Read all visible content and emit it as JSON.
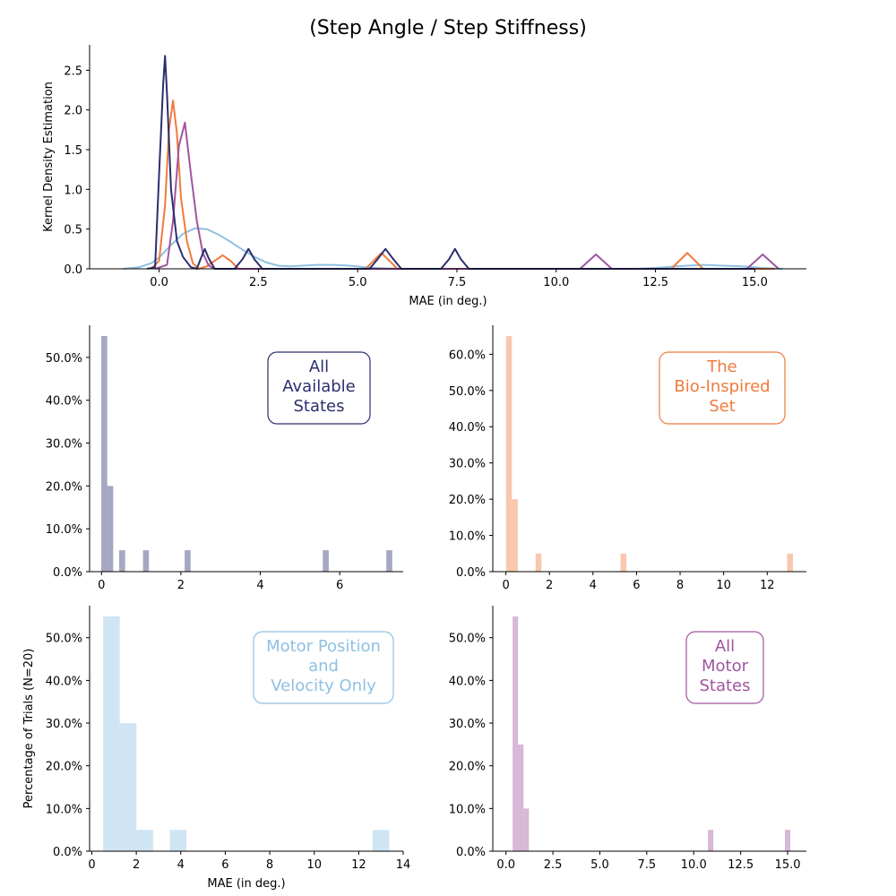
{
  "title": "(Step Angle / Step Stiffness)",
  "colors": {
    "all_states": "#2b2f6e",
    "bio_inspired": "#f07a3c",
    "motor_pos_vel": "#8fc0e3",
    "all_motor": "#a0559e",
    "axis": "#000000"
  },
  "chart_data": [
    {
      "id": "kde",
      "type": "line",
      "xlabel": "MAE (in deg.)",
      "ylabel": "Kernel Density Estimation",
      "xlim": [
        -1.75,
        16.3
      ],
      "ylim": [
        0,
        2.82
      ],
      "xticks": [
        0.0,
        2.5,
        5.0,
        7.5,
        10.0,
        12.5,
        15.0
      ],
      "xtick_labels": [
        "0.0",
        "2.5",
        "5.0",
        "7.5",
        "10.0",
        "12.5",
        "15.0"
      ],
      "yticks": [
        0.0,
        0.5,
        1.0,
        1.5,
        2.0,
        2.5
      ],
      "ytick_labels": [
        "0.0",
        "0.5",
        "1.0",
        "1.5",
        "2.0",
        "2.5"
      ],
      "grid": false,
      "series": [
        {
          "color_key": "motor_pos_vel",
          "x": [
            -0.9,
            -0.5,
            -0.2,
            0.0,
            0.3,
            0.6,
            0.9,
            1.2,
            1.5,
            1.8,
            2.1,
            2.4,
            2.7,
            3.0,
            3.3,
            3.6,
            4.0,
            4.4,
            4.8,
            5.2,
            5.5,
            6.0,
            7.0,
            8.0,
            9.0,
            10.0,
            11.0,
            12.0,
            12.5,
            13.0,
            13.3,
            13.7,
            14.2,
            14.7,
            15.2,
            15.7
          ],
          "y": [
            0.0,
            0.02,
            0.07,
            0.14,
            0.3,
            0.44,
            0.51,
            0.5,
            0.43,
            0.34,
            0.24,
            0.15,
            0.08,
            0.04,
            0.03,
            0.04,
            0.05,
            0.05,
            0.04,
            0.02,
            0.01,
            0.0,
            0.0,
            0.0,
            0.0,
            0.0,
            0.0,
            0.0,
            0.01,
            0.03,
            0.04,
            0.05,
            0.04,
            0.03,
            0.01,
            0.0
          ]
        },
        {
          "color_key": "bio_inspired",
          "x": [
            -0.2,
            0.0,
            0.15,
            0.25,
            0.35,
            0.45,
            0.55,
            0.7,
            0.85,
            1.0,
            1.2,
            1.4,
            1.6,
            1.8,
            2.0,
            5.2,
            5.4,
            5.6,
            5.8,
            6.0,
            12.9,
            13.1,
            13.3,
            13.5,
            13.7,
            15.5
          ],
          "y": [
            0.0,
            0.1,
            0.8,
            1.75,
            2.12,
            1.7,
            0.9,
            0.35,
            0.07,
            0.0,
            0.03,
            0.1,
            0.17,
            0.1,
            0.0,
            0.0,
            0.1,
            0.2,
            0.1,
            0.0,
            0.0,
            0.1,
            0.2,
            0.1,
            0.0,
            0.0
          ]
        },
        {
          "color_key": "all_motor",
          "x": [
            -0.1,
            0.2,
            0.35,
            0.5,
            0.65,
            0.8,
            0.95,
            1.1,
            1.25,
            1.4,
            10.6,
            10.8,
            11.0,
            11.2,
            11.4,
            14.8,
            15.0,
            15.2,
            15.4,
            15.6
          ],
          "y": [
            0.0,
            0.05,
            0.6,
            1.55,
            1.84,
            1.2,
            0.6,
            0.2,
            0.04,
            0.0,
            0.0,
            0.09,
            0.18,
            0.09,
            0.0,
            0.0,
            0.09,
            0.18,
            0.09,
            0.0
          ]
        },
        {
          "color_key": "all_states",
          "x": [
            -0.3,
            -0.1,
            0.0,
            0.1,
            0.15,
            0.2,
            0.3,
            0.45,
            0.6,
            0.8,
            0.95,
            1.05,
            1.15,
            1.25,
            1.4,
            1.9,
            2.1,
            2.25,
            2.4,
            2.6,
            5.3,
            5.5,
            5.7,
            5.9,
            6.1,
            7.1,
            7.3,
            7.45,
            7.6,
            7.8,
            15.0
          ],
          "y": [
            0.0,
            0.02,
            1.2,
            2.3,
            2.68,
            2.2,
            1.0,
            0.35,
            0.15,
            0.02,
            0.0,
            0.13,
            0.25,
            0.13,
            0.0,
            0.0,
            0.12,
            0.25,
            0.12,
            0.0,
            0.0,
            0.12,
            0.25,
            0.12,
            0.0,
            0.0,
            0.12,
            0.25,
            0.12,
            0.0,
            0.0
          ]
        }
      ]
    },
    {
      "id": "hist-all-states",
      "type": "bar",
      "legend_text": [
        "All",
        "Available",
        "States"
      ],
      "color_key": "all_states",
      "bar_opacity": 0.42,
      "xlim": [
        -0.3,
        7.6
      ],
      "ylim": [
        0,
        0.575
      ],
      "xticks": [
        0,
        2,
        4,
        6
      ],
      "xtick_labels": [
        "0",
        "2",
        "4",
        "6"
      ],
      "yticks": [
        0.0,
        0.1,
        0.2,
        0.3,
        0.4,
        0.5
      ],
      "ytick_labels": [
        "0.0%",
        "10.0%",
        "20.0%",
        "30.0%",
        "40.0%",
        "50.0%"
      ],
      "bin_width": 0.15,
      "bins": [
        {
          "x": 0.07,
          "value": 0.55
        },
        {
          "x": 0.22,
          "value": 0.2
        },
        {
          "x": 0.52,
          "value": 0.05
        },
        {
          "x": 1.12,
          "value": 0.05
        },
        {
          "x": 2.17,
          "value": 0.05
        },
        {
          "x": 5.65,
          "value": 0.05
        },
        {
          "x": 7.25,
          "value": 0.05
        }
      ]
    },
    {
      "id": "hist-bio-inspired",
      "type": "bar",
      "legend_text": [
        "The",
        "Bio-Inspired",
        "Set"
      ],
      "color_key": "bio_inspired",
      "bar_opacity": 0.42,
      "xlim": [
        -0.6,
        13.8
      ],
      "ylim": [
        0,
        0.68
      ],
      "xticks": [
        0,
        2,
        4,
        6,
        8,
        10,
        12
      ],
      "xtick_labels": [
        "0",
        "2",
        "4",
        "6",
        "8",
        "10",
        "12"
      ],
      "yticks": [
        0.0,
        0.1,
        0.2,
        0.3,
        0.4,
        0.5,
        0.6
      ],
      "ytick_labels": [
        "0.0%",
        "10.0%",
        "20.0%",
        "30.0%",
        "40.0%",
        "50.0%",
        "60.0%"
      ],
      "bin_width": 0.27,
      "bins": [
        {
          "x": 0.14,
          "value": 0.65
        },
        {
          "x": 0.41,
          "value": 0.2
        },
        {
          "x": 1.5,
          "value": 0.05
        },
        {
          "x": 5.4,
          "value": 0.05
        },
        {
          "x": 13.05,
          "value": 0.05
        }
      ]
    },
    {
      "id": "hist-motor-pos-vel",
      "type": "bar",
      "legend_text": [
        "Motor Position",
        "and",
        "Velocity Only"
      ],
      "color_key": "motor_pos_vel",
      "bar_opacity": 0.42,
      "xlim": [
        -0.1,
        14.0
      ],
      "ylim": [
        0,
        0.575
      ],
      "xticks": [
        0,
        2,
        4,
        6,
        8,
        10,
        12,
        14
      ],
      "xtick_labels": [
        "0",
        "2",
        "4",
        "6",
        "8",
        "10",
        "12",
        "14"
      ],
      "yticks": [
        0.0,
        0.1,
        0.2,
        0.3,
        0.4,
        0.5
      ],
      "ytick_labels": [
        "0.0%",
        "10.0%",
        "20.0%",
        "30.0%",
        "40.0%",
        "50.0%"
      ],
      "xlabel": "MAE (in deg.)",
      "ylabel": "Percentage of Trials (N=20)",
      "bin_width": 0.75,
      "bins": [
        {
          "x": 0.88,
          "value": 0.55
        },
        {
          "x": 1.63,
          "value": 0.3
        },
        {
          "x": 2.38,
          "value": 0.05
        },
        {
          "x": 3.88,
          "value": 0.05
        },
        {
          "x": 13.0,
          "value": 0.05
        }
      ]
    },
    {
      "id": "hist-all-motor",
      "type": "bar",
      "legend_text": [
        "All",
        "Motor",
        "States"
      ],
      "color_key": "all_motor",
      "bar_opacity": 0.42,
      "xlim": [
        -0.7,
        16.0
      ],
      "ylim": [
        0,
        0.575
      ],
      "xticks": [
        0.0,
        2.5,
        5.0,
        7.5,
        10.0,
        12.5,
        15.0
      ],
      "xtick_labels": [
        "0.0",
        "2.5",
        "5.0",
        "7.5",
        "10.0",
        "12.5",
        "15.0"
      ],
      "yticks": [
        0.0,
        0.1,
        0.2,
        0.3,
        0.4,
        0.5
      ],
      "ytick_labels": [
        "0.0%",
        "10.0%",
        "20.0%",
        "30.0%",
        "40.0%",
        "50.0%"
      ],
      "bin_width": 0.29,
      "bins": [
        {
          "x": 0.5,
          "value": 0.55
        },
        {
          "x": 0.79,
          "value": 0.25
        },
        {
          "x": 1.08,
          "value": 0.1
        },
        {
          "x": 10.9,
          "value": 0.05
        },
        {
          "x": 15.0,
          "value": 0.05
        }
      ]
    }
  ]
}
